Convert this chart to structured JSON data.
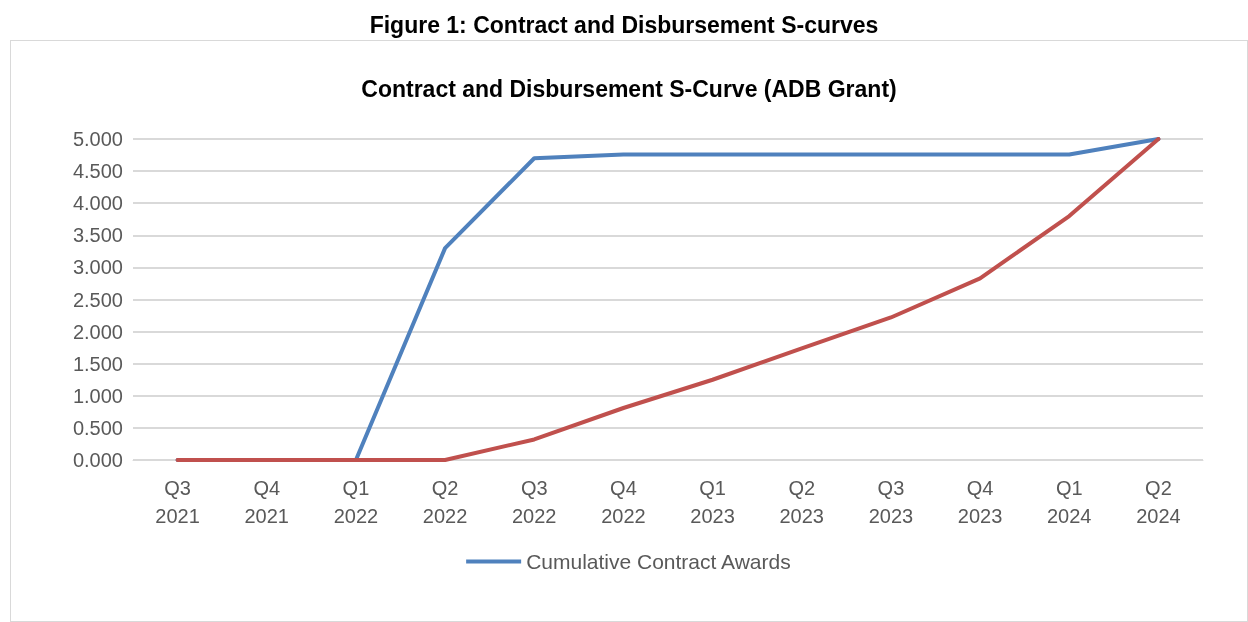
{
  "chart_data": {
    "type": "line",
    "title": "Figure 1: Contract and Disbursement S-curves",
    "subtitle": "Contract and Disbursement S-Curve (ADB Grant)",
    "categories": [
      "Q3\n2021",
      "Q4\n2021",
      "Q1\n2022",
      "Q2\n2022",
      "Q3\n2022",
      "Q4\n2022",
      "Q1\n2023",
      "Q2\n2023",
      "Q3\n2023",
      "Q4\n2023",
      "Q1\n2024",
      "Q2\n2024"
    ],
    "series": [
      {
        "name": "Cumulative Contract Awards",
        "color": "#4f81bd",
        "values": [
          0,
          0,
          0,
          3.3,
          4.7,
          4.76,
          4.76,
          4.76,
          4.76,
          4.76,
          4.76,
          5
        ]
      },
      {
        "color": "#c0504d",
        "values": [
          0,
          0,
          0,
          0,
          0.32,
          0.81,
          1.25,
          1.74,
          2.22,
          2.83,
          3.8,
          5
        ]
      }
    ],
    "ylim": [
      0,
      5
    ],
    "yticks": [
      {
        "value": 0,
        "label": "0.000"
      },
      {
        "value": 0.5,
        "label": "0.500"
      },
      {
        "value": 1,
        "label": "1.000"
      },
      {
        "value": 1.5,
        "label": "1.500"
      },
      {
        "value": 2,
        "label": "2.000"
      },
      {
        "value": 2.5,
        "label": "2.500"
      },
      {
        "value": 3,
        "label": "3.000"
      },
      {
        "value": 3.5,
        "label": "3.500"
      },
      {
        "value": 4,
        "label": "4.000"
      },
      {
        "value": 4.5,
        "label": "4.500"
      },
      {
        "value": 5,
        "label": "5.000"
      }
    ],
    "grid": "y",
    "legend": "bottom",
    "marker": "none",
    "line_style": "solid"
  }
}
